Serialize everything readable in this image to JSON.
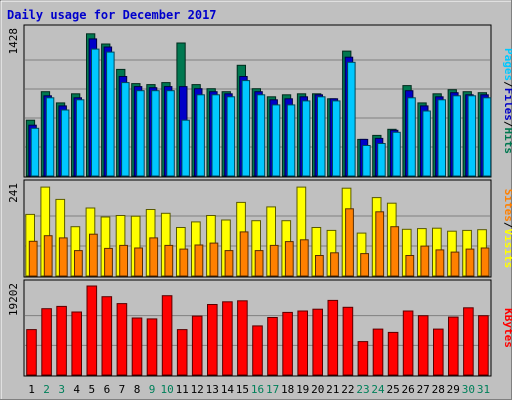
{
  "chart_data": {
    "type": "bar",
    "title": "Daily usage for December 2017",
    "categories": [
      "1",
      "2",
      "3",
      "4",
      "5",
      "6",
      "7",
      "8",
      "9",
      "10",
      "11",
      "12",
      "13",
      "14",
      "15",
      "16",
      "17",
      "18",
      "19",
      "20",
      "21",
      "22",
      "23",
      "24",
      "25",
      "26",
      "27",
      "28",
      "29",
      "30",
      "31"
    ],
    "weekend_days": [
      "2",
      "3",
      "9",
      "10",
      "16",
      "17",
      "23",
      "24",
      "30",
      "31"
    ],
    "panels": [
      {
        "name": "hits-files-pages",
        "ymax": 1428,
        "ymax_label": "1428",
        "side_label": [
          "Pages",
          "/",
          "Files",
          "/",
          "Hits"
        ],
        "series": [
          {
            "name": "Hits",
            "color": "#007850",
            "values": [
              550,
              830,
              720,
              810,
              1400,
              1300,
              1050,
              910,
              900,
              920,
              1310,
              900,
              860,
              830,
              1090,
              860,
              780,
              800,
              810,
              810,
              760,
              1230,
              360,
              400,
              460,
              890,
              720,
              810,
              850,
              830,
              820
            ]
          },
          {
            "name": "Files",
            "color": "#0000c8",
            "values": [
              500,
              790,
              690,
              770,
              1350,
              1270,
              980,
              880,
              870,
              880,
              880,
              860,
              830,
              810,
              980,
              830,
              750,
              760,
              780,
              800,
              760,
              1170,
              360,
              370,
              450,
              840,
              690,
              780,
              820,
              800,
              800
            ]
          },
          {
            "name": "Pages",
            "color": "#00c8ff",
            "values": [
              470,
              770,
              650,
              750,
              1250,
              1220,
              920,
              840,
              840,
              840,
              550,
              800,
              800,
              780,
              940,
              800,
              700,
              700,
              740,
              780,
              740,
              1120,
              300,
              320,
              430,
              770,
              640,
              750,
              790,
              790,
              770
            ]
          }
        ]
      },
      {
        "name": "visits-sites",
        "ymax": 241,
        "ymax_label": "241",
        "side_label": [
          "Sites",
          "/",
          "Visits"
        ],
        "series": [
          {
            "name": "Visits",
            "color": "#ffff00",
            "values": [
              165,
              238,
              205,
              132,
              182,
              158,
              162,
              160,
              178,
              168,
              130,
              145,
              162,
              150,
              197,
              148,
              185,
              148,
              238,
              130,
              122,
              235,
              115,
              210,
              195,
              125,
              127,
              128,
              120,
              122,
              124
            ]
          },
          {
            "name": "Sites",
            "color": "#ff8000",
            "values": [
              93,
              108,
              102,
              68,
              112,
              74,
              82,
              75,
              102,
              82,
              72,
              83,
              88,
              68,
              118,
              68,
              82,
              92,
              97,
              55,
              62,
              180,
              60,
              172,
              132,
              55,
              80,
              70,
              64,
              72,
              75
            ]
          }
        ]
      },
      {
        "name": "kbytes",
        "ymax": 19202,
        "ymax_label": "19202",
        "side_label": [
          "KBytes"
        ],
        "series": [
          {
            "name": "KBytes",
            "color": "#ff0000",
            "values": [
              9800,
              14300,
              14800,
              13600,
              19200,
              16900,
              15400,
              12300,
              12100,
              17100,
              9800,
              12700,
              15200,
              15800,
              16000,
              10600,
              12400,
              13500,
              13800,
              14200,
              16100,
              14600,
              7200,
              9900,
              9200,
              13800,
              12800,
              9900,
              12500,
              14500,
              12800
            ]
          }
        ]
      }
    ]
  }
}
